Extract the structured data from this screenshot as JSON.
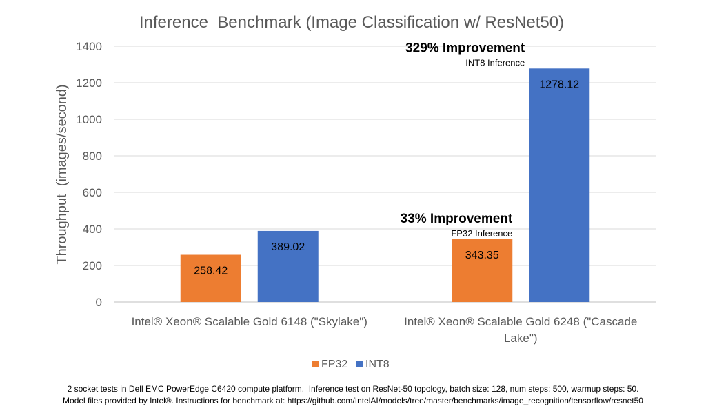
{
  "chart_data": {
    "type": "bar",
    "title": "Inference  Benchmark (Image Classification w/ ResNet50)",
    "ylabel": "Throughput  (images/second)",
    "xlabel": "",
    "ylim": [
      0,
      1400
    ],
    "yticks": [
      0,
      200,
      400,
      600,
      800,
      1000,
      1200,
      1400
    ],
    "grid": true,
    "legend_position": "bottom",
    "categories": [
      [
        "Intel® Xeon® Scalable Gold 6148 (\"Skylake\")"
      ],
      [
        "Intel® Xeon® Scalable Gold 6248 (\"Cascade",
        "Lake\")"
      ]
    ],
    "series": [
      {
        "name": "FP32",
        "color": "#ED7D31",
        "values": [
          258.42,
          343.35
        ],
        "labels": [
          "258.42",
          "343.35"
        ]
      },
      {
        "name": "INT8",
        "color": "#4472C4",
        "values": [
          389.02,
          1278.12
        ],
        "labels": [
          "389.02",
          "1278.12"
        ]
      }
    ],
    "annotations": [
      {
        "title": "329% Improvement",
        "subtitle": "INT8 Inference",
        "category": 1,
        "series": 1
      },
      {
        "title": "33% Improvement",
        "subtitle": "FP32 Inference",
        "category": 1,
        "series": 0
      }
    ]
  },
  "footnote": {
    "line1": "2 socket tests in Dell EMC PowerEdge C6420 compute platform.  Inference test on ResNet-50 topology, batch size: 128, num steps: 500, warmup steps: 50.",
    "line2": "Model files provided by Intel®. Instructions for benchmark at: https://github.com/IntelAI/models/tree/master/benchmarks/image_recognition/tensorflow/resnet50"
  }
}
